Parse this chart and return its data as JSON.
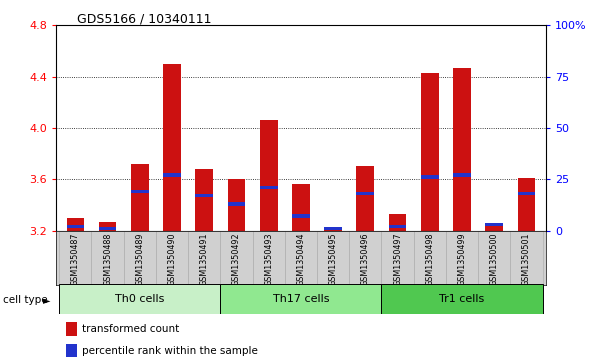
{
  "title": "GDS5166 / 10340111",
  "samples": [
    "GSM1350487",
    "GSM1350488",
    "GSM1350489",
    "GSM1350490",
    "GSM1350491",
    "GSM1350492",
    "GSM1350493",
    "GSM1350494",
    "GSM1350495",
    "GSM1350496",
    "GSM1350497",
    "GSM1350498",
    "GSM1350499",
    "GSM1350500",
    "GSM1350501"
  ],
  "transformed_count": [
    3.3,
    3.27,
    3.72,
    4.5,
    3.68,
    3.6,
    4.06,
    3.56,
    3.22,
    3.7,
    3.33,
    4.43,
    4.47,
    3.26,
    3.61
  ],
  "percentile_rank": [
    2,
    1,
    19,
    27,
    17,
    13,
    21,
    7,
    1,
    18,
    2,
    26,
    27,
    3,
    18
  ],
  "cell_types": [
    {
      "label": "Th0 cells",
      "start": 0,
      "end": 5,
      "color": "#c8f0c8"
    },
    {
      "label": "Th17 cells",
      "start": 5,
      "end": 10,
      "color": "#90e890"
    },
    {
      "label": "Tr1 cells",
      "start": 10,
      "end": 15,
      "color": "#50c850"
    }
  ],
  "ymin": 3.2,
  "ymax": 4.8,
  "yticks": [
    3.2,
    3.6,
    4.0,
    4.4,
    4.8
  ],
  "right_yticks": [
    0,
    25,
    50,
    75,
    100
  ],
  "right_yticklabels": [
    "0",
    "25",
    "50",
    "75",
    "100%"
  ],
  "bar_color": "#cc1111",
  "blue_color": "#2233cc",
  "bar_width": 0.55,
  "sample_bg": "#d0d0d0",
  "plot_bg": "#ffffff",
  "legend_items": [
    {
      "label": "transformed count",
      "color": "#cc1111"
    },
    {
      "label": "percentile rank within the sample",
      "color": "#2233cc"
    }
  ],
  "cell_type_label": "cell type"
}
